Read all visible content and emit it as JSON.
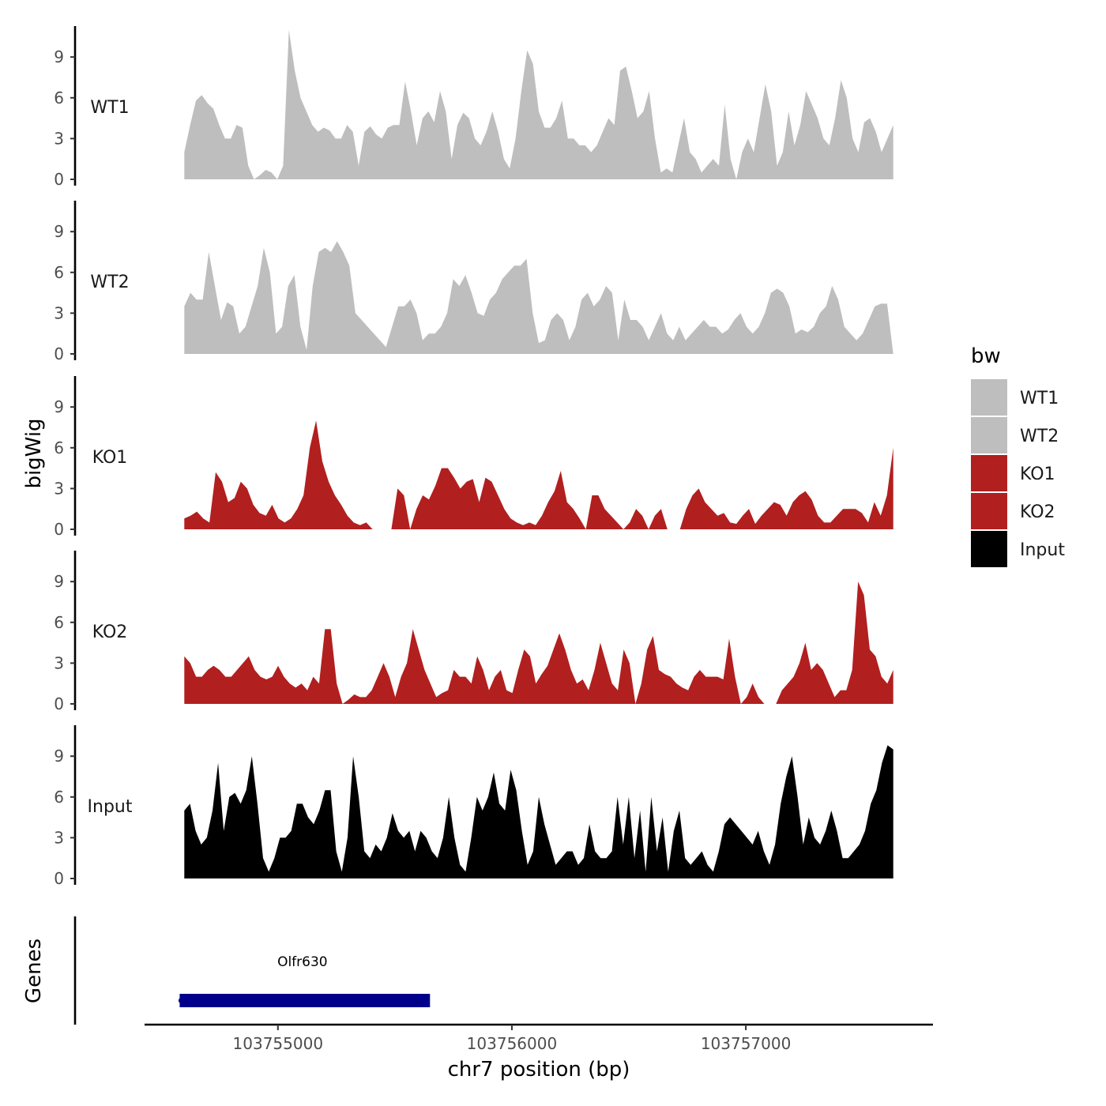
{
  "chart_data": {
    "type": "area",
    "chromosome": "chr7",
    "xlabel": "chr7 position (bp)",
    "ylabel": "bigWig",
    "genes_panel_label": "Genes",
    "xlim": [
      103754430,
      103757800
    ],
    "x_start": 103754600,
    "x_end": 103757630,
    "x_ticks": [
      103755000,
      103756000,
      103757000
    ],
    "x_tick_labels": [
      "103755000",
      "103756000",
      "103757000"
    ],
    "ylim": [
      0,
      11.5
    ],
    "y_ticks": [
      0,
      3,
      6,
      9
    ],
    "y_tick_labels": [
      "0",
      "3",
      "6",
      "9"
    ],
    "legend": {
      "title": "bw",
      "entries": [
        {
          "label": "WT1",
          "color": "#bebebe"
        },
        {
          "label": "WT2",
          "color": "#bebebe"
        },
        {
          "label": "KO1",
          "color": "#b21f1f"
        },
        {
          "label": "KO2",
          "color": "#b21f1f"
        },
        {
          "label": "Input",
          "color": "#000000"
        }
      ]
    },
    "series": [
      {
        "name": "WT1",
        "color": "#bebebe",
        "values": [
          2.0,
          4.0,
          5.8,
          6.2,
          5.6,
          5.2,
          4.0,
          3.0,
          3.0,
          4.0,
          3.8,
          1.0,
          0.0,
          0.3,
          0.7,
          0.5,
          0.0,
          1.0,
          11.0,
          8.0,
          6.0,
          5.0,
          4.0,
          3.5,
          3.8,
          3.6,
          3.0,
          3.0,
          4.0,
          3.5,
          1.0,
          3.5,
          3.9,
          3.3,
          3.0,
          3.8,
          4.0,
          4.0,
          7.2,
          5.0,
          2.5,
          4.5,
          5.0,
          4.2,
          6.5,
          5.0,
          1.5,
          4.0,
          4.9,
          4.5,
          3.0,
          2.5,
          3.5,
          5.0,
          3.5,
          1.5,
          0.8,
          3.0,
          6.5,
          9.5,
          8.5,
          5.0,
          3.8,
          3.8,
          4.5,
          5.8,
          3.0,
          3.0,
          2.5,
          2.5,
          2.0,
          2.5,
          3.5,
          4.5,
          4.0,
          8.0,
          8.3,
          6.5,
          4.5,
          5.0,
          6.5,
          3.0,
          0.5,
          0.8,
          0.5,
          2.5,
          4.5,
          2.0,
          1.5,
          0.5,
          1.0,
          1.5,
          1.0,
          5.5,
          1.5,
          0.0,
          2.0,
          3.0,
          2.0,
          4.5,
          7.0,
          5.0,
          1.0,
          2.0,
          5.0,
          2.5,
          4.0,
          6.5,
          5.5,
          4.5,
          3.0,
          2.5,
          4.5,
          7.3,
          6.0,
          3.0,
          2.0,
          4.2,
          4.5,
          3.5,
          2.0,
          3.0,
          4.0
        ]
      },
      {
        "name": "WT2",
        "color": "#bebebe",
        "values": [
          3.5,
          4.5,
          4.0,
          4.0,
          7.5,
          5.0,
          2.5,
          3.8,
          3.5,
          1.5,
          2.0,
          3.5,
          5.0,
          7.8,
          6.0,
          1.5,
          2.0,
          5.0,
          5.8,
          2.0,
          0.3,
          5.0,
          7.5,
          7.8,
          7.5,
          8.3,
          7.5,
          6.5,
          3.0,
          2.5,
          2.0,
          1.5,
          1.0,
          0.5,
          2.0,
          3.5,
          3.5,
          4.0,
          3.0,
          1.0,
          1.5,
          1.5,
          2.0,
          3.0,
          5.5,
          5.0,
          5.8,
          4.5,
          3.0,
          2.8,
          4.0,
          4.5,
          5.5,
          6.0,
          6.5,
          6.5,
          7.0,
          3.0,
          0.8,
          1.0,
          2.5,
          3.0,
          2.5,
          1.0,
          2.0,
          4.0,
          4.5,
          3.5,
          4.0,
          5.0,
          4.5,
          1.0,
          4.0,
          2.5,
          2.5,
          2.0,
          1.0,
          2.0,
          3.0,
          1.5,
          1.0,
          2.0,
          1.0,
          1.5,
          2.0,
          2.5,
          2.0,
          2.0,
          1.5,
          1.8,
          2.5,
          3.0,
          2.0,
          1.5,
          2.0,
          3.0,
          4.5,
          4.8,
          4.5,
          3.5,
          1.5,
          1.8,
          1.6,
          2.0,
          3.0,
          3.5,
          5.0,
          4.0,
          2.0,
          1.5,
          1.0,
          1.5,
          2.5,
          3.5,
          3.7,
          3.7,
          0.0
        ]
      },
      {
        "name": "KO1",
        "color": "#b21f1f",
        "values": [
          0.8,
          1.0,
          1.3,
          0.8,
          0.5,
          4.2,
          3.5,
          2.0,
          2.3,
          3.5,
          3.0,
          1.8,
          1.2,
          1.0,
          1.8,
          0.8,
          0.5,
          0.8,
          1.5,
          2.5,
          6.0,
          8.0,
          5.0,
          3.5,
          2.5,
          1.8,
          1.0,
          0.5,
          0.3,
          0.5,
          0.0,
          null,
          null,
          0.0,
          3.0,
          2.5,
          0.0,
          1.5,
          2.5,
          2.2,
          3.2,
          4.5,
          4.5,
          3.8,
          3.0,
          3.5,
          3.7,
          2.0,
          3.8,
          3.5,
          2.5,
          1.5,
          0.8,
          0.5,
          0.3,
          0.5,
          0.3,
          1.0,
          2.0,
          2.8,
          4.3,
          2.0,
          1.5,
          0.8,
          0.0,
          2.5,
          2.5,
          1.5,
          1.0,
          0.5,
          0.0,
          0.5,
          1.5,
          1.0,
          0.0,
          1.0,
          1.5,
          0.0,
          null,
          0.0,
          1.5,
          2.5,
          3.0,
          2.0,
          1.5,
          1.0,
          1.2,
          0.5,
          0.4,
          1.0,
          1.5,
          0.4,
          1.0,
          1.5,
          2.0,
          1.8,
          1.0,
          2.0,
          2.5,
          2.8,
          2.2,
          1.0,
          0.5,
          0.5,
          1.0,
          1.5,
          1.5,
          1.5,
          1.2,
          0.5,
          2.0,
          1.0,
          2.5,
          6.0
        ]
      },
      {
        "name": "KO2",
        "color": "#b21f1f",
        "values": [
          3.5,
          3.0,
          2.0,
          2.0,
          2.5,
          2.8,
          2.5,
          2.0,
          2.0,
          2.5,
          3.0,
          3.5,
          2.5,
          2.0,
          1.8,
          2.0,
          2.8,
          2.0,
          1.5,
          1.2,
          1.5,
          1.0,
          2.0,
          1.5,
          5.5,
          5.5,
          1.5,
          0.0,
          0.3,
          0.7,
          0.5,
          0.5,
          1.0,
          2.0,
          3.0,
          2.0,
          0.5,
          2.0,
          3.0,
          5.5,
          4.0,
          2.5,
          1.5,
          0.5,
          0.8,
          1.0,
          2.5,
          2.0,
          2.0,
          1.5,
          3.5,
          2.5,
          1.0,
          2.0,
          2.5,
          1.0,
          0.8,
          2.5,
          4.0,
          3.5,
          1.5,
          2.2,
          2.8,
          4.0,
          5.2,
          4.0,
          2.5,
          1.5,
          1.8,
          1.0,
          2.5,
          4.5,
          3.0,
          1.5,
          1.0,
          4.0,
          3.0,
          0.0,
          1.5,
          4.0,
          5.0,
          2.5,
          2.2,
          2.0,
          1.5,
          1.2,
          1.0,
          2.0,
          2.5,
          2.0,
          2.0,
          2.0,
          1.8,
          4.8,
          2.0,
          0.0,
          0.5,
          1.5,
          0.5,
          0.0,
          null,
          0.0,
          1.0,
          1.5,
          2.0,
          3.0,
          4.5,
          2.5,
          3.0,
          2.5,
          1.5,
          0.5,
          1.0,
          1.0,
          2.5,
          9.0,
          8.0,
          4.0,
          3.5,
          2.0,
          1.5,
          2.5
        ]
      },
      {
        "name": "Input",
        "color": "#000000",
        "values": [
          5.0,
          5.5,
          3.5,
          2.5,
          3.0,
          5.0,
          8.5,
          3.5,
          6.0,
          6.3,
          5.5,
          6.5,
          9.0,
          5.5,
          1.5,
          0.5,
          1.5,
          3.0,
          3.0,
          3.5,
          5.5,
          5.5,
          4.5,
          4.0,
          5.0,
          6.5,
          6.5,
          2.0,
          0.5,
          3.0,
          9.0,
          6.0,
          2.0,
          1.5,
          2.5,
          2.0,
          3.0,
          4.8,
          3.5,
          3.0,
          3.5,
          2.0,
          3.5,
          3.0,
          2.0,
          1.5,
          3.0,
          6.0,
          3.0,
          1.0,
          0.5,
          3.0,
          6.0,
          5.0,
          6.0,
          7.8,
          5.5,
          5.0,
          8.0,
          6.5,
          3.5,
          1.0,
          2.0,
          6.0,
          4.0,
          2.5,
          1.0,
          1.5,
          2.0,
          2.0,
          1.0,
          1.5,
          4.0,
          2.0,
          1.5,
          1.5,
          2.0,
          6.0,
          2.5,
          6.0,
          1.5,
          5.0,
          0.5,
          6.0,
          2.0,
          4.5,
          0.5,
          3.5,
          5.0,
          1.5,
          1.0,
          1.5,
          2.0,
          1.0,
          0.5,
          2.0,
          4.0,
          4.5,
          4.0,
          3.5,
          3.0,
          2.5,
          3.5,
          2.0,
          1.0,
          2.5,
          5.5,
          7.5,
          9.0,
          6.0,
          2.5,
          4.5,
          3.0,
          2.5,
          3.5,
          5.0,
          3.5,
          1.5,
          1.5,
          2.0,
          2.5,
          3.5,
          5.5,
          6.5,
          8.5,
          9.8,
          9.5
        ]
      }
    ],
    "genes": [
      {
        "name": "Olfr630",
        "start": 103754580,
        "end": 103755650,
        "color": "#00008b"
      }
    ]
  }
}
